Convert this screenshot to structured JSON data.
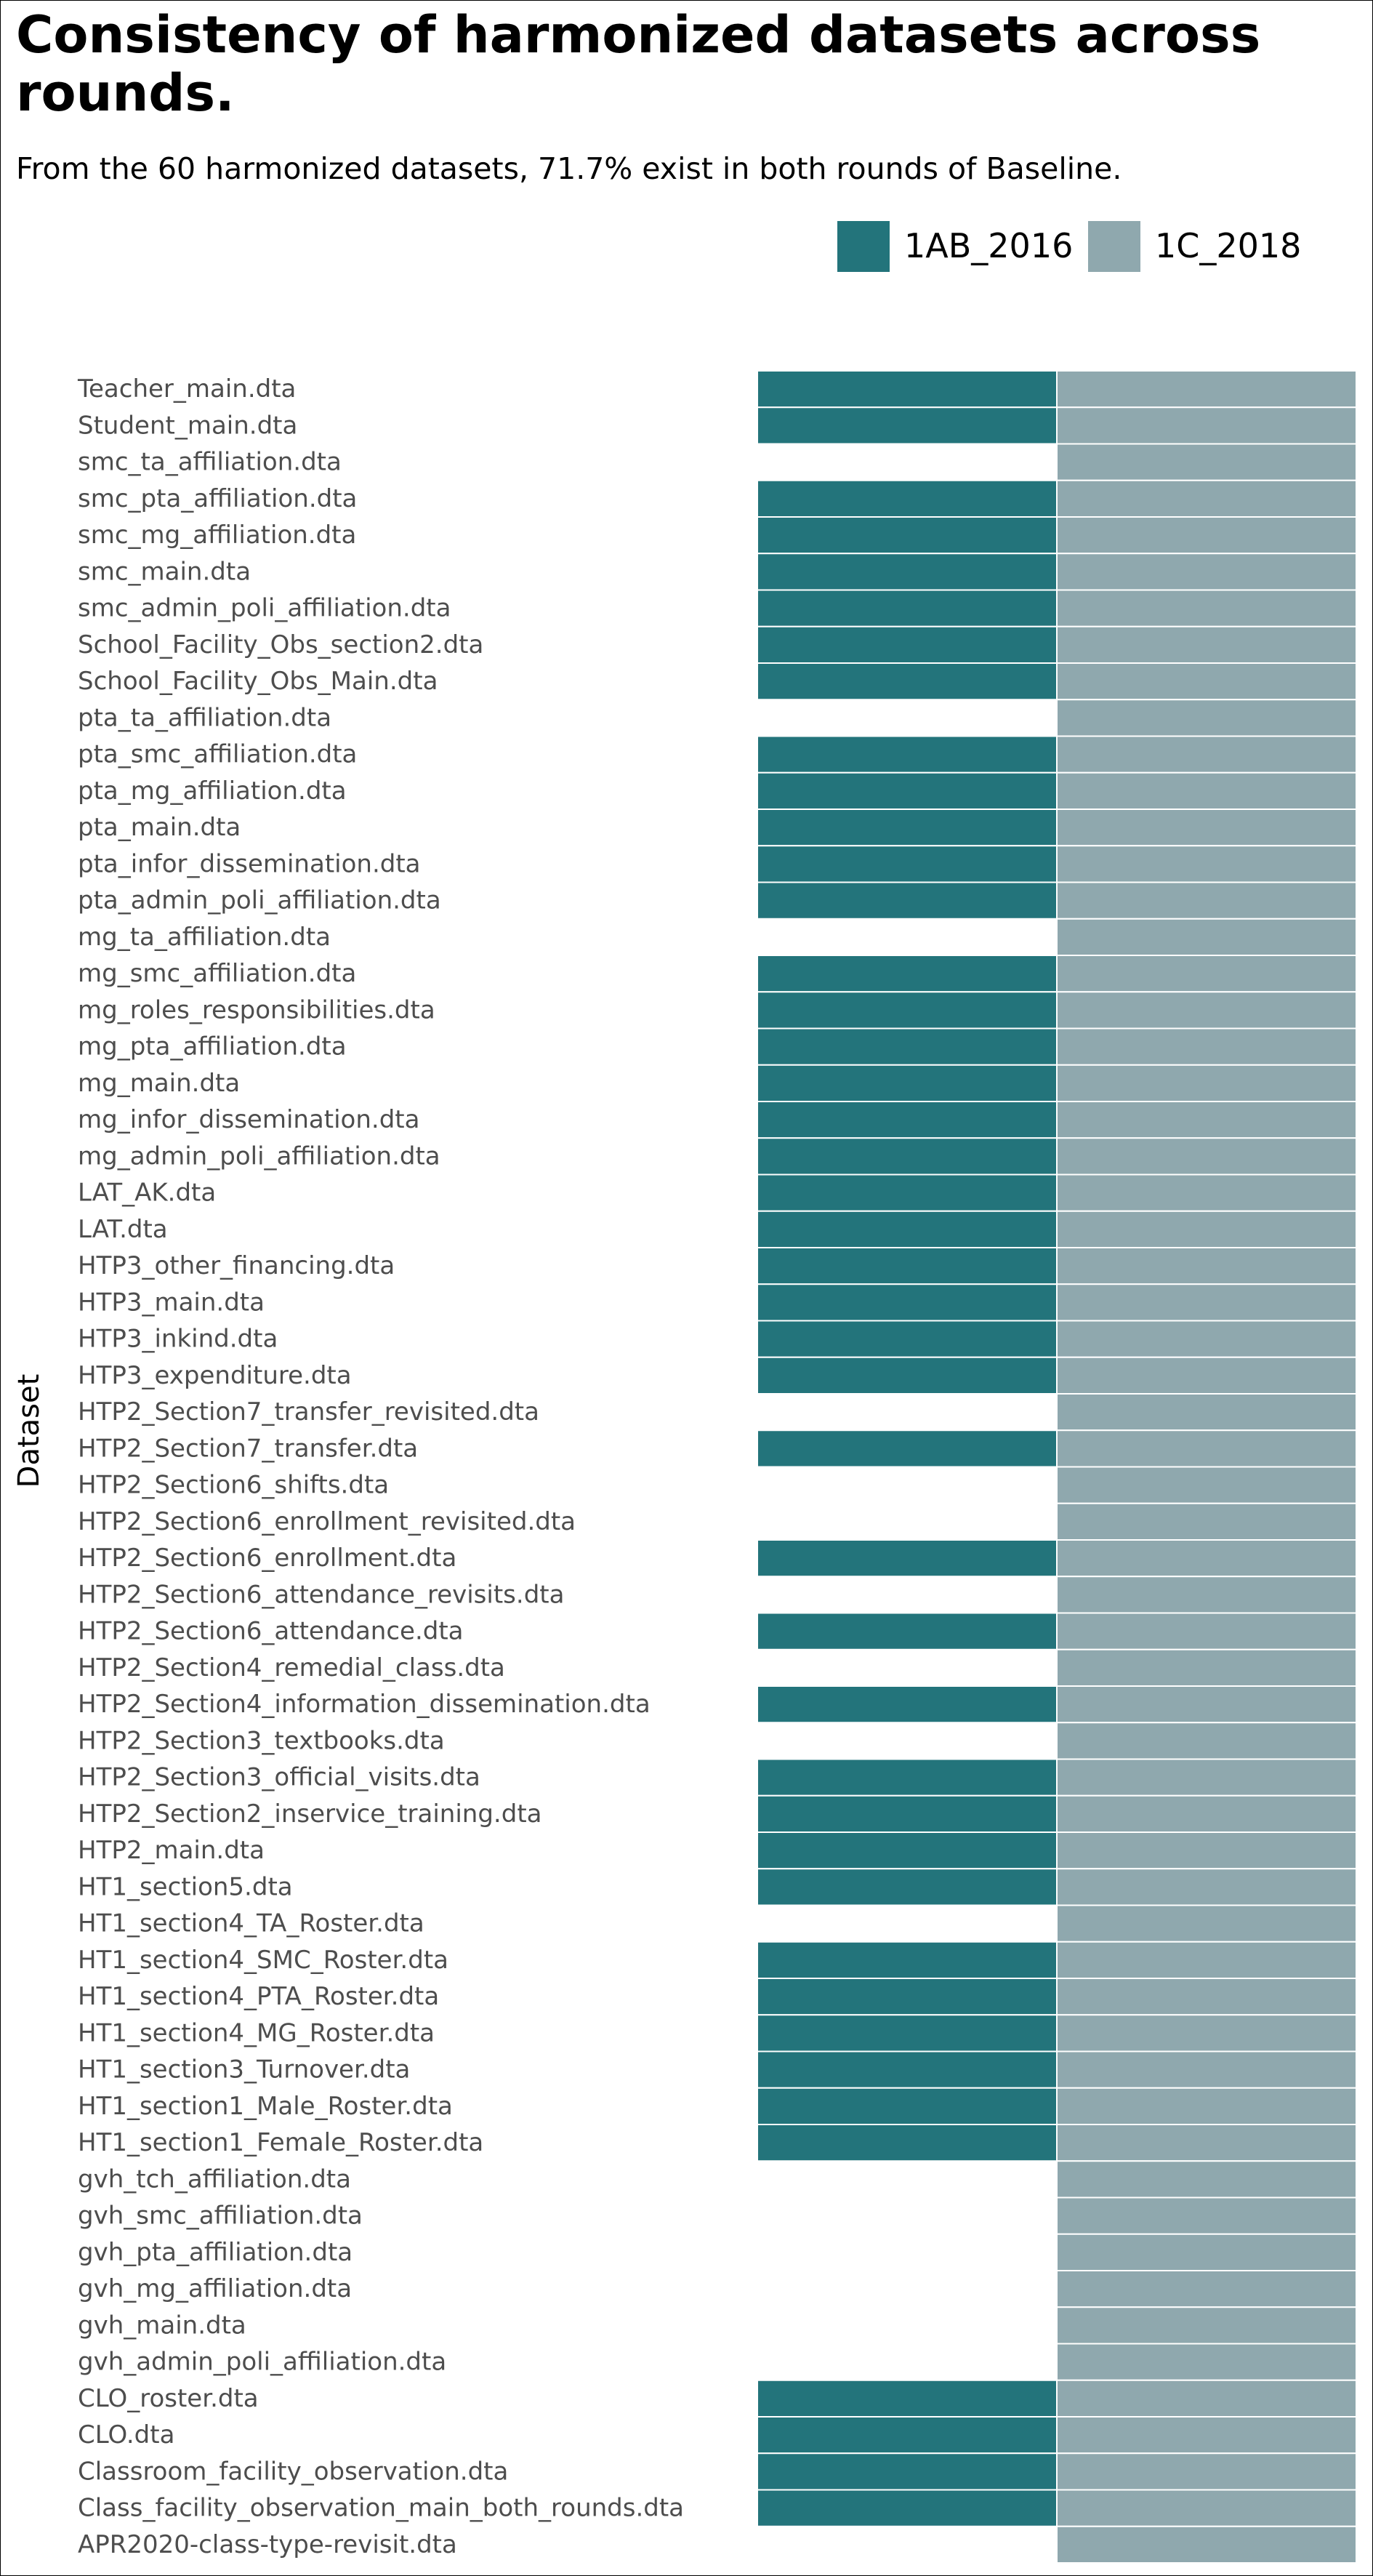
{
  "title": "Consistency of harmonized datasets across rounds.",
  "subtitle": "From the 60 harmonized datasets, 71.7% exist in both rounds of Baseline.",
  "colors": {
    "1AB_2016": "#23747b",
    "1C_2018": "#8fa8ae",
    "tick_text": "#4d4d4d",
    "cell_border": "#ffffff"
  },
  "legend": [
    {
      "name": "1AB_2016",
      "color": "#23747b"
    },
    {
      "name": "1C_2018",
      "color": "#8fa8ae"
    }
  ],
  "chart_data": {
    "type": "heatmap",
    "title": "Consistency of harmonized datasets across rounds.",
    "subtitle": "From the 60 harmonized datasets, 71.7% exist in both rounds of Baseline.",
    "ylabel": "Dataset",
    "xlabel": "",
    "legend_position": "top-right",
    "grid": false,
    "columns": [
      "1AB_2016",
      "1C_2018"
    ],
    "rows": [
      {
        "dataset": "Teacher_main.dta",
        "1AB_2016": true,
        "1C_2018": true
      },
      {
        "dataset": "Student_main.dta",
        "1AB_2016": true,
        "1C_2018": true
      },
      {
        "dataset": "smc_ta_affiliation.dta",
        "1AB_2016": false,
        "1C_2018": true
      },
      {
        "dataset": "smc_pta_affiliation.dta",
        "1AB_2016": true,
        "1C_2018": true
      },
      {
        "dataset": "smc_mg_affiliation.dta",
        "1AB_2016": true,
        "1C_2018": true
      },
      {
        "dataset": "smc_main.dta",
        "1AB_2016": true,
        "1C_2018": true
      },
      {
        "dataset": "smc_admin_poli_affiliation.dta",
        "1AB_2016": true,
        "1C_2018": true
      },
      {
        "dataset": "School_Facility_Obs_section2.dta",
        "1AB_2016": true,
        "1C_2018": true
      },
      {
        "dataset": "School_Facility_Obs_Main.dta",
        "1AB_2016": true,
        "1C_2018": true
      },
      {
        "dataset": "pta_ta_affiliation.dta",
        "1AB_2016": false,
        "1C_2018": true
      },
      {
        "dataset": "pta_smc_affiliation.dta",
        "1AB_2016": true,
        "1C_2018": true
      },
      {
        "dataset": "pta_mg_affiliation.dta",
        "1AB_2016": true,
        "1C_2018": true
      },
      {
        "dataset": "pta_main.dta",
        "1AB_2016": true,
        "1C_2018": true
      },
      {
        "dataset": "pta_infor_dissemination.dta",
        "1AB_2016": true,
        "1C_2018": true
      },
      {
        "dataset": "pta_admin_poli_affiliation.dta",
        "1AB_2016": true,
        "1C_2018": true
      },
      {
        "dataset": "mg_ta_affiliation.dta",
        "1AB_2016": false,
        "1C_2018": true
      },
      {
        "dataset": "mg_smc_affiliation.dta",
        "1AB_2016": true,
        "1C_2018": true
      },
      {
        "dataset": "mg_roles_responsibilities.dta",
        "1AB_2016": true,
        "1C_2018": true
      },
      {
        "dataset": "mg_pta_affiliation.dta",
        "1AB_2016": true,
        "1C_2018": true
      },
      {
        "dataset": "mg_main.dta",
        "1AB_2016": true,
        "1C_2018": true
      },
      {
        "dataset": "mg_infor_dissemination.dta",
        "1AB_2016": true,
        "1C_2018": true
      },
      {
        "dataset": "mg_admin_poli_affiliation.dta",
        "1AB_2016": true,
        "1C_2018": true
      },
      {
        "dataset": "LAT_AK.dta",
        "1AB_2016": true,
        "1C_2018": true
      },
      {
        "dataset": "LAT.dta",
        "1AB_2016": true,
        "1C_2018": true
      },
      {
        "dataset": "HTP3_other_financing.dta",
        "1AB_2016": true,
        "1C_2018": true
      },
      {
        "dataset": "HTP3_main.dta",
        "1AB_2016": true,
        "1C_2018": true
      },
      {
        "dataset": "HTP3_inkind.dta",
        "1AB_2016": true,
        "1C_2018": true
      },
      {
        "dataset": "HTP3_expenditure.dta",
        "1AB_2016": true,
        "1C_2018": true
      },
      {
        "dataset": "HTP2_Section7_transfer_revisited.dta",
        "1AB_2016": false,
        "1C_2018": true
      },
      {
        "dataset": "HTP2_Section7_transfer.dta",
        "1AB_2016": true,
        "1C_2018": true
      },
      {
        "dataset": "HTP2_Section6_shifts.dta",
        "1AB_2016": false,
        "1C_2018": true
      },
      {
        "dataset": "HTP2_Section6_enrollment_revisited.dta",
        "1AB_2016": false,
        "1C_2018": true
      },
      {
        "dataset": "HTP2_Section6_enrollment.dta",
        "1AB_2016": true,
        "1C_2018": true
      },
      {
        "dataset": "HTP2_Section6_attendance_revisits.dta",
        "1AB_2016": false,
        "1C_2018": true
      },
      {
        "dataset": "HTP2_Section6_attendance.dta",
        "1AB_2016": true,
        "1C_2018": true
      },
      {
        "dataset": "HTP2_Section4_remedial_class.dta",
        "1AB_2016": false,
        "1C_2018": true
      },
      {
        "dataset": "HTP2_Section4_information_dissemination.dta",
        "1AB_2016": true,
        "1C_2018": true
      },
      {
        "dataset": "HTP2_Section3_textbooks.dta",
        "1AB_2016": false,
        "1C_2018": true
      },
      {
        "dataset": "HTP2_Section3_official_visits.dta",
        "1AB_2016": true,
        "1C_2018": true
      },
      {
        "dataset": "HTP2_Section2_inservice_training.dta",
        "1AB_2016": true,
        "1C_2018": true
      },
      {
        "dataset": "HTP2_main.dta",
        "1AB_2016": true,
        "1C_2018": true
      },
      {
        "dataset": "HT1_section5.dta",
        "1AB_2016": true,
        "1C_2018": true
      },
      {
        "dataset": "HT1_section4_TA_Roster.dta",
        "1AB_2016": false,
        "1C_2018": true
      },
      {
        "dataset": "HT1_section4_SMC_Roster.dta",
        "1AB_2016": true,
        "1C_2018": true
      },
      {
        "dataset": "HT1_section4_PTA_Roster.dta",
        "1AB_2016": true,
        "1C_2018": true
      },
      {
        "dataset": "HT1_section4_MG_Roster.dta",
        "1AB_2016": true,
        "1C_2018": true
      },
      {
        "dataset": "HT1_section3_Turnover.dta",
        "1AB_2016": true,
        "1C_2018": true
      },
      {
        "dataset": "HT1_section1_Male_Roster.dta",
        "1AB_2016": true,
        "1C_2018": true
      },
      {
        "dataset": "HT1_section1_Female_Roster.dta",
        "1AB_2016": true,
        "1C_2018": true
      },
      {
        "dataset": "gvh_tch_affiliation.dta",
        "1AB_2016": false,
        "1C_2018": true
      },
      {
        "dataset": "gvh_smc_affiliation.dta",
        "1AB_2016": false,
        "1C_2018": true
      },
      {
        "dataset": "gvh_pta_affiliation.dta",
        "1AB_2016": false,
        "1C_2018": true
      },
      {
        "dataset": "gvh_mg_affiliation.dta",
        "1AB_2016": false,
        "1C_2018": true
      },
      {
        "dataset": "gvh_main.dta",
        "1AB_2016": false,
        "1C_2018": true
      },
      {
        "dataset": "gvh_admin_poli_affiliation.dta",
        "1AB_2016": false,
        "1C_2018": true
      },
      {
        "dataset": "CLO_roster.dta",
        "1AB_2016": true,
        "1C_2018": true
      },
      {
        "dataset": "CLO.dta",
        "1AB_2016": true,
        "1C_2018": true
      },
      {
        "dataset": "Classroom_facility_observation.dta",
        "1AB_2016": true,
        "1C_2018": true
      },
      {
        "dataset": "Class_facility_observation_main_both_rounds.dta",
        "1AB_2016": true,
        "1C_2018": true
      },
      {
        "dataset": "APR2020-class-type-revisit.dta",
        "1AB_2016": false,
        "1C_2018": true
      }
    ]
  }
}
